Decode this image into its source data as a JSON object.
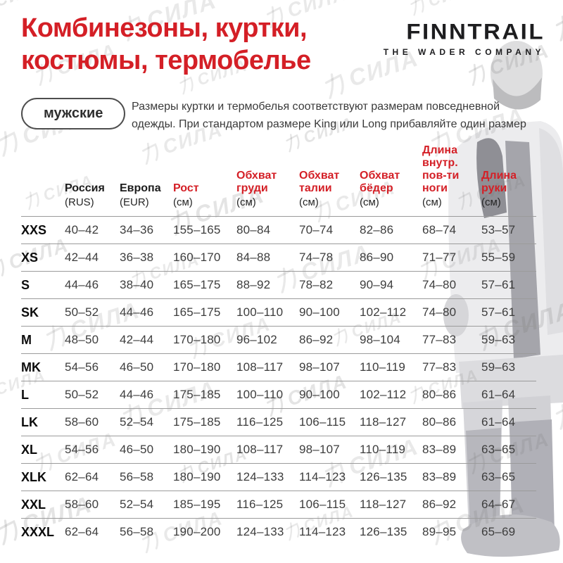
{
  "page": {
    "title_lines": [
      "Комбинезоны, куртки,",
      "костюмы, термобелье"
    ],
    "gender_tab": "мужские",
    "note_lines": [
      "Размеры куртки и термобелья соответствуют размерам повседневной",
      "одежды. При стандартом размере King или Long прибавляйте один размер"
    ],
    "watermark_text": "力СИЛА",
    "colors": {
      "accent_red": "#d41f26",
      "logo_black": "#1d1d1f"
    }
  },
  "logo": {
    "name": "FINNTRAIL",
    "tagline": "THE WADER COMPANY"
  },
  "table": {
    "columns": [
      {
        "label": "",
        "sub": "",
        "red": false
      },
      {
        "label": "Россия",
        "sub": "(RUS)",
        "red": false
      },
      {
        "label": "Европа",
        "sub": "(EUR)",
        "red": false
      },
      {
        "label": "Рост",
        "sub": "(см)",
        "red": true
      },
      {
        "label": "Обхват груди",
        "sub": "(см)",
        "red": true
      },
      {
        "label": "Обхват талии",
        "sub": "(см)",
        "red": true
      },
      {
        "label": "Обхват бёдер",
        "sub": "(см)",
        "red": true
      },
      {
        "label": "Длина внутр. пов-ти ноги",
        "sub": "(см)",
        "red": true
      },
      {
        "label": "Длина руки",
        "sub": "(см)",
        "red": true
      }
    ],
    "rows": [
      {
        "size": "XXS",
        "values": [
          "40–42",
          "34–36",
          "155–165",
          "80–84",
          "70–74",
          "82–86",
          "68–74",
          "53–57"
        ]
      },
      {
        "size": "XS",
        "values": [
          "42–44",
          "36–38",
          "160–170",
          "84–88",
          "74–78",
          "86–90",
          "71–77",
          "55–59"
        ]
      },
      {
        "size": "S",
        "values": [
          "44–46",
          "38–40",
          "165–175",
          "88–92",
          "78–82",
          "90–94",
          "74–80",
          "57–61"
        ]
      },
      {
        "size": "SK",
        "values": [
          "50–52",
          "44–46",
          "165–175",
          "100–110",
          "90–100",
          "102–112",
          "74–80",
          "57–61"
        ]
      },
      {
        "size": "M",
        "values": [
          "48–50",
          "42–44",
          "170–180",
          "96–102",
          "86–92",
          "98–104",
          "77–83",
          "59–63"
        ]
      },
      {
        "size": "MK",
        "values": [
          "54–56",
          "46–50",
          "170–180",
          "108–117",
          "98–107",
          "110–119",
          "77–83",
          "59–63"
        ]
      },
      {
        "size": "L",
        "values": [
          "50–52",
          "44–46",
          "175–185",
          "100–110",
          "90–100",
          "102–112",
          "80–86",
          "61–64"
        ]
      },
      {
        "size": "LK",
        "values": [
          "58–60",
          "52–54",
          "175–185",
          "116–125",
          "106–115",
          "118–127",
          "80–86",
          "61–64"
        ]
      },
      {
        "size": "XL",
        "values": [
          "54–56",
          "46–50",
          "180–190",
          "108–117",
          "98–107",
          "110–119",
          "83–89",
          "63–65"
        ]
      },
      {
        "size": "XLK",
        "values": [
          "62–64",
          "56–58",
          "180–190",
          "124–133",
          "114–123",
          "126–135",
          "83–89",
          "63–65"
        ]
      },
      {
        "size": "XXL",
        "values": [
          "58–60",
          "52–54",
          "185–195",
          "116–125",
          "106–115",
          "118–127",
          "86–92",
          "64–67"
        ]
      },
      {
        "size": "XXXL",
        "values": [
          "62–64",
          "56–58",
          "190–200",
          "124–133",
          "114–123",
          "126–135",
          "89–95",
          "65–69"
        ]
      }
    ]
  }
}
